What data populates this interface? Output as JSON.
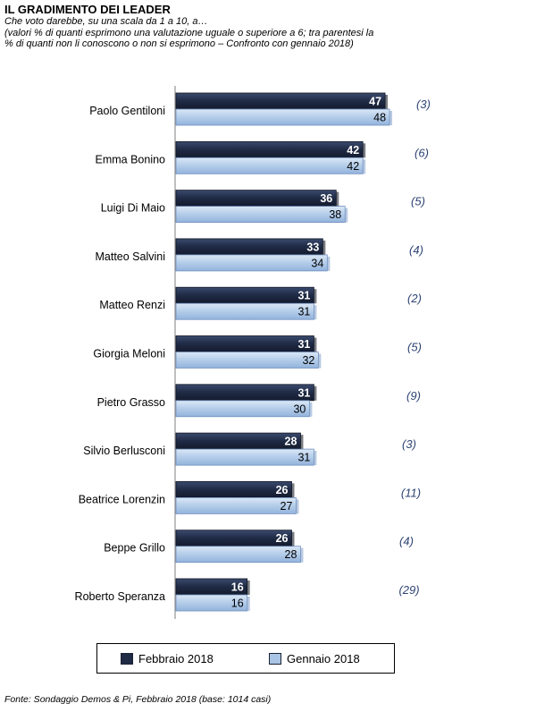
{
  "header": {
    "title": "IL GRADIMENTO DEI LEADER",
    "subtitle_lines": [
      "Che voto darebbe, su una scala da 1 a 10, a…",
      "(valori % di quanti esprimono una valutazione uguale o superiore a 6; tra parentesi la",
      "% di quanti non li conoscono o non si esprimono – Confronto con gennaio 2018)"
    ]
  },
  "source": "Fonte: Sondaggio Demos & Pi, Febbraio 2018 (base: 1014 casi)",
  "colors": {
    "series_dark": "#1f2a44",
    "series_light": "#a9c4e4",
    "paren_text": "#2d4373",
    "axis": "#7f7f7f"
  },
  "chart_data": {
    "type": "bar",
    "orientation": "horizontal",
    "categories": [
      "Paolo Gentiloni",
      "Emma Bonino",
      "Luigi Di Maio",
      "Matteo Salvini",
      "Matteo Renzi",
      "Giorgia Meloni",
      "Pietro Grasso",
      "Silvio Berlusconi",
      "Beatrice Lorenzin",
      "Beppe Grillo",
      "Roberto Speranza"
    ],
    "series": [
      {
        "name": "Febbraio 2018",
        "values": [
          47,
          42,
          36,
          33,
          31,
          31,
          31,
          28,
          26,
          26,
          16
        ]
      },
      {
        "name": "Gennaio 2018",
        "values": [
          48,
          42,
          38,
          34,
          31,
          32,
          30,
          31,
          27,
          28,
          16
        ]
      }
    ],
    "annotations": [
      "(3)",
      "(6)",
      "(5)",
      "(4)",
      "(2)",
      "(5)",
      "(9)",
      "(3)",
      "(11)",
      "(4)",
      "(29)"
    ],
    "legend_position": "bottom",
    "grid": false
  }
}
